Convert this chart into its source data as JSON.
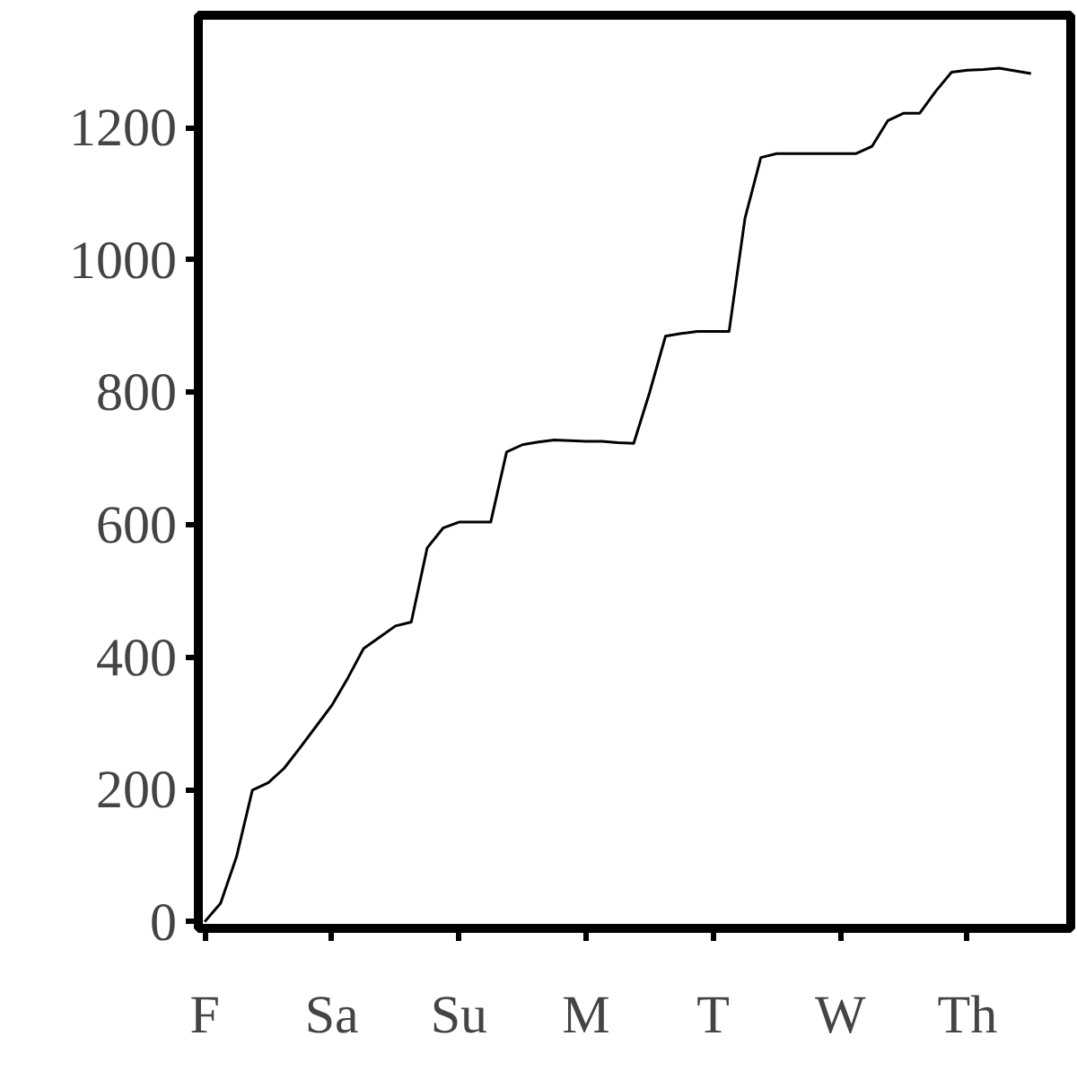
{
  "chart_data": {
    "type": "line",
    "color": "#000000",
    "categories": [
      "F",
      null,
      null,
      null,
      null,
      null,
      null,
      null,
      "Sa",
      null,
      null,
      null,
      null,
      null,
      null,
      null,
      "Su",
      null,
      null,
      null,
      null,
      null,
      null,
      null,
      "M",
      null,
      null,
      null,
      null,
      null,
      null,
      null,
      "T",
      null,
      null,
      null,
      null,
      null,
      null,
      null,
      "W",
      null,
      null,
      null,
      null,
      null,
      null,
      null,
      "Th",
      null,
      null,
      null,
      null
    ],
    "values": [
      0,
      28,
      98,
      199,
      210,
      232,
      263,
      295,
      327,
      368,
      413,
      430,
      447,
      453,
      565,
      595,
      604,
      604,
      604,
      710,
      721,
      725,
      728,
      727,
      726,
      726,
      724,
      723,
      800,
      885,
      889,
      892,
      892,
      892,
      1063,
      1155,
      1161,
      1161,
      1161,
      1161,
      1161,
      1161,
      1172,
      1211,
      1222,
      1222,
      1255,
      1284,
      1287,
      1288,
      1290,
      1286,
      1282
    ],
    "ylim": [
      -10,
      1370
    ],
    "yticks": [
      0,
      200,
      400,
      600,
      800,
      1000,
      1200
    ],
    "grid": false,
    "line_style": "solid",
    "marker": "none"
  }
}
